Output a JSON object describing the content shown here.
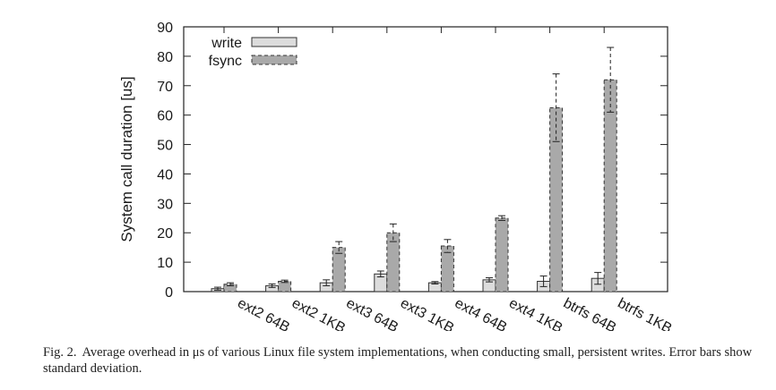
{
  "chart_data": {
    "type": "bar",
    "categories": [
      "ext2 64B",
      "ext2 1KB",
      "ext3 64B",
      "ext3 1KB",
      "ext4 64B",
      "ext4 1KB",
      "btrfs 64B",
      "btrfs 1KB"
    ],
    "series": [
      {
        "name": "write",
        "values": [
          1.0,
          2.0,
          3.0,
          6.0,
          3.0,
          4.0,
          3.5,
          4.5
        ],
        "errors": [
          0.5,
          0.6,
          1.0,
          1.0,
          0.4,
          0.7,
          1.8,
          2.0
        ],
        "color": "#dcdcdc"
      },
      {
        "name": "fsync",
        "values": [
          2.5,
          3.5,
          15.0,
          20.0,
          15.5,
          25.0,
          62.5,
          72.0
        ],
        "errors": [
          0.5,
          0.4,
          2.0,
          3.0,
          2.2,
          0.8,
          11.5,
          11.0
        ],
        "color": "#a9a9a9"
      }
    ],
    "title": "",
    "xlabel": "",
    "ylabel": "System call duration [us]",
    "ylim": [
      0,
      90
    ],
    "yticks": [
      0,
      10,
      20,
      30,
      40,
      50,
      60,
      70,
      80,
      90
    ],
    "legend_position": "top-left",
    "grid": false
  },
  "caption": {
    "label": "Fig. 2.",
    "text": "Average overhead in μs of various Linux file system implementations, when conducting small, persistent writes. Error bars show standard deviation."
  }
}
